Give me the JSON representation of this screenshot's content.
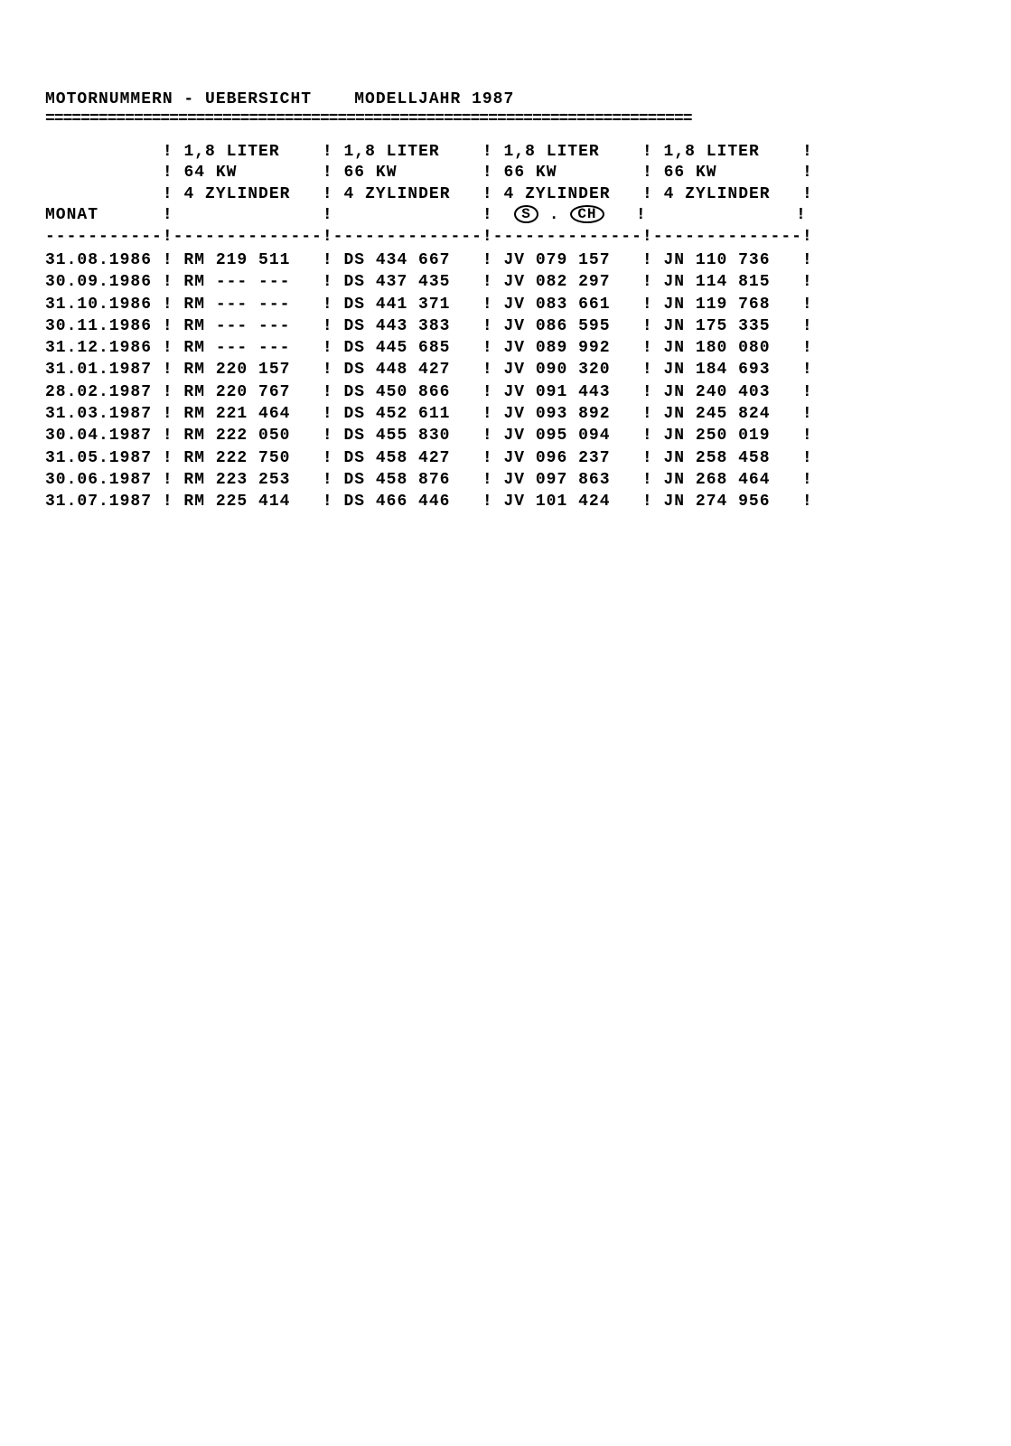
{
  "title": "MOTORNUMMERN - UEBERSICHT    MODELLJAHR 1987",
  "underline": "=========================================================================",
  "columns": {
    "c1": {
      "line1": "1,8 LITER",
      "line2": "64 KW",
      "line3": "4 ZYLINDER",
      "line4": ""
    },
    "c2": {
      "line1": "1,8 LITER",
      "line2": "66 KW",
      "line3": "4 ZYLINDER",
      "line4": ""
    },
    "c3": {
      "line1": "1,8 LITER",
      "line2": "66 KW",
      "line3": "4 ZYLINDER",
      "line4": "S  . CH"
    },
    "c4": {
      "line1": "1,8 LITER",
      "line2": "66 KW",
      "line3": "4 ZYLINDER",
      "line4": ""
    }
  },
  "monat_label": "MONAT",
  "dash_sep": "-----------!--------------!--------------!--------------!--------------!",
  "rows": [
    {
      "date": "31.08.1986",
      "c1": "RM 219 511",
      "c2": "DS 434 667",
      "c3": "JV 079 157",
      "c4": "JN 110 736"
    },
    {
      "date": "30.09.1986",
      "c1": "RM --- ---",
      "c2": "DS 437 435",
      "c3": "JV 082 297",
      "c4": "JN 114 815"
    },
    {
      "date": "31.10.1986",
      "c1": "RM --- ---",
      "c2": "DS 441 371",
      "c3": "JV 083 661",
      "c4": "JN 119 768"
    },
    {
      "date": "30.11.1986",
      "c1": "RM --- ---",
      "c2": "DS 443 383",
      "c3": "JV 086 595",
      "c4": "JN 175 335"
    },
    {
      "date": "31.12.1986",
      "c1": "RM --- ---",
      "c2": "DS 445 685",
      "c3": "JV 089 992",
      "c4": "JN 180 080"
    },
    {
      "date": "31.01.1987",
      "c1": "RM 220 157",
      "c2": "DS 448 427",
      "c3": "JV 090 320",
      "c4": "JN 184 693"
    },
    {
      "date": "28.02.1987",
      "c1": "RM 220 767",
      "c2": "DS 450 866",
      "c3": "JV 091 443",
      "c4": "JN 240 403"
    },
    {
      "date": "31.03.1987",
      "c1": "RM 221 464",
      "c2": "DS 452 611",
      "c3": "JV 093 892",
      "c4": "JN 245 824"
    },
    {
      "date": "30.04.1987",
      "c1": "RM 222 050",
      "c2": "DS 455 830",
      "c3": "JV 095 094",
      "c4": "JN 250 019"
    },
    {
      "date": "31.05.1987",
      "c1": "RM 222 750",
      "c2": "DS 458 427",
      "c3": "JV 096 237",
      "c4": "JN 258 458"
    },
    {
      "date": "30.06.1987",
      "c1": "RM 223 253",
      "c2": "DS 458 876",
      "c3": "JV 097 863",
      "c4": "JN 268 464"
    },
    {
      "date": "31.07.1987",
      "c1": "RM 225 414",
      "c2": "DS 466 446",
      "c3": "JV 101 424",
      "c4": "JN 274 956"
    }
  ]
}
